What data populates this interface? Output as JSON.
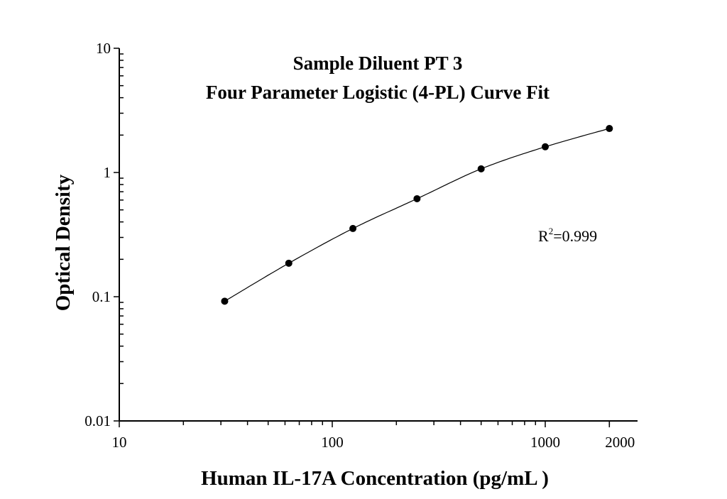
{
  "chart_data": {
    "type": "scatter",
    "title": [
      "Sample Diluent PT 3",
      "Four Parameter Logistic (4-PL) Curve Fit"
    ],
    "xlabel": "Human IL-17A Concentration (pg/mL )",
    "ylabel": "Optical Density",
    "x_scale": "log",
    "y_scale": "log",
    "xlim": [
      10,
      2000
    ],
    "ylim": [
      0.01,
      10
    ],
    "x_ticks": [
      "10",
      "100",
      "1000",
      "2000"
    ],
    "y_ticks": [
      "0.01",
      "0.1",
      "1",
      "10"
    ],
    "grid": false,
    "fit": "4-PL curve",
    "annotation": {
      "r_label": "R",
      "r_sup": "2",
      "r_value": "=0.999"
    },
    "points": [
      {
        "x": 31.25,
        "y": 0.092
      },
      {
        "x": 62.5,
        "y": 0.186
      },
      {
        "x": 125,
        "y": 0.354
      },
      {
        "x": 250,
        "y": 0.615
      },
      {
        "x": 500,
        "y": 1.07
      },
      {
        "x": 1000,
        "y": 1.61
      },
      {
        "x": 2000,
        "y": 2.26
      }
    ],
    "colors": {
      "points": "#000000",
      "line": "#000000"
    }
  }
}
